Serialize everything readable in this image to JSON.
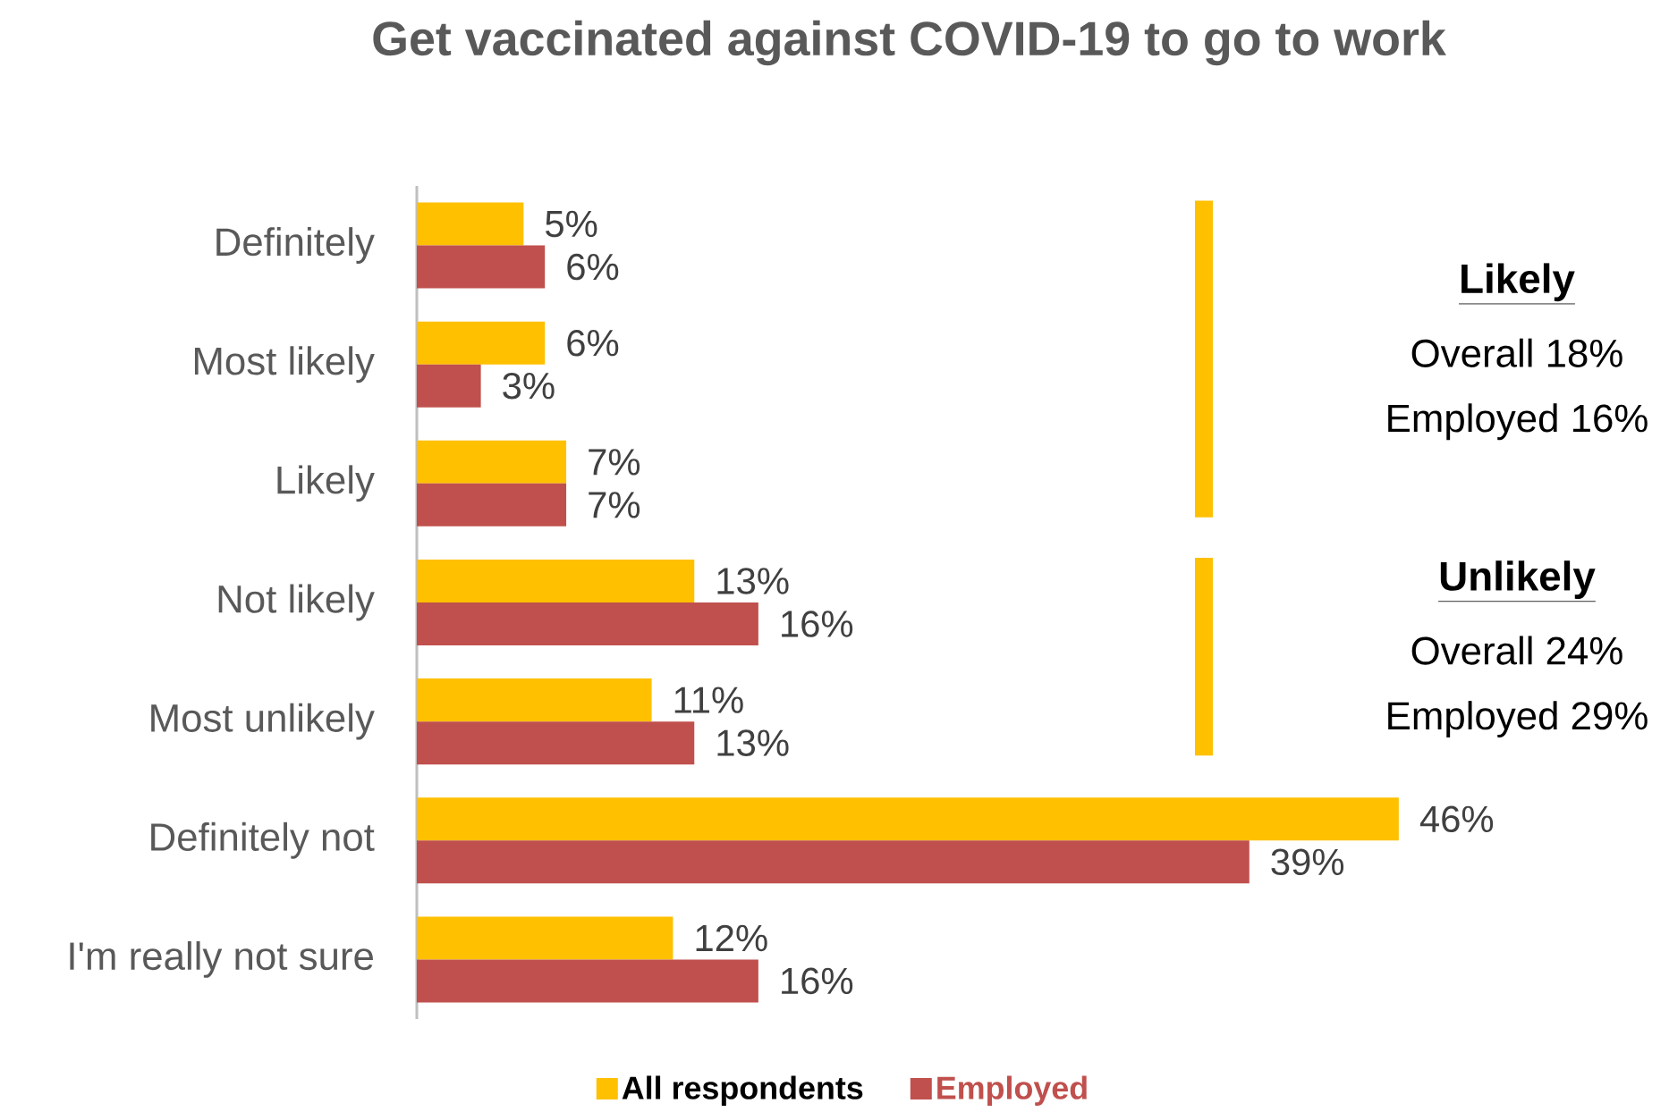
{
  "chart_data": {
    "type": "bar",
    "orientation": "horizontal",
    "title": "Get vaccinated against COVID-19 to go to work",
    "categories": [
      "Definitely",
      "Most likely",
      "Likely",
      "Not likely",
      "Most unlikely",
      "Definitely not",
      "I'm really not sure"
    ],
    "series": [
      {
        "name": "All respondents",
        "color": "#ffc000",
        "values": [
          5,
          6,
          7,
          13,
          11,
          46,
          12
        ],
        "value_labels": [
          "5%",
          "6%",
          "7%",
          "13%",
          "11%",
          "46%",
          "12%"
        ]
      },
      {
        "name": "Employed",
        "color": "#c0504d",
        "values": [
          6,
          3,
          7,
          16,
          13,
          39,
          16
        ],
        "value_labels": [
          "6%",
          "3%",
          "7%",
          "16%",
          "13%",
          "39%",
          "16%"
        ]
      }
    ],
    "legend": "bottom",
    "annotations": [
      "Likely",
      "Overall 18%",
      "Employed 16%",
      "Unlikely",
      "Overall 24%",
      "Employed 29%"
    ]
  }
}
